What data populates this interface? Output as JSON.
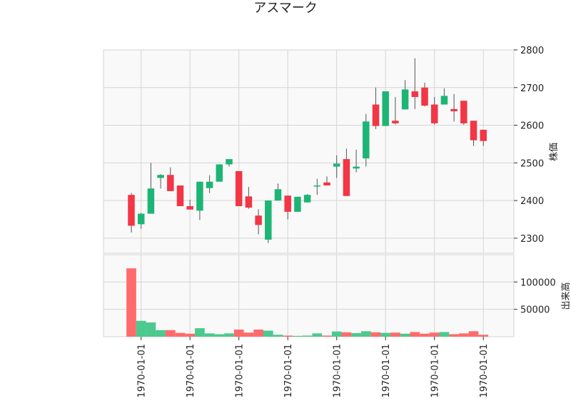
{
  "chart_data": {
    "type": "candlestick",
    "title": "アスマーク",
    "price_axis": {
      "label": "株価",
      "ylim": [
        2260,
        2800
      ],
      "ticks": [
        2300,
        2400,
        2500,
        2600,
        2700,
        2800
      ]
    },
    "volume_axis": {
      "label": "出来高",
      "ylim": [
        0,
        150000
      ],
      "ticks": [
        50000,
        100000
      ]
    },
    "x_tick_labels": [
      "1970-01-01",
      "1970-01-01",
      "1970-01-01",
      "1970-01-01",
      "1970-01-01",
      "1970-01-01",
      "1970-01-01",
      "1970-01-01"
    ],
    "x_tick_positions": [
      1,
      6,
      11,
      16,
      21,
      26,
      31,
      36
    ],
    "colors": {
      "up": "#1db575",
      "down": "#f23645",
      "up_volume": "#4cc98e",
      "down_volume": "#ff6b6b",
      "wick": "#555555",
      "plot_bg": "#f9f9f9",
      "grid": "#d4d4d4"
    },
    "grid": true,
    "candles": [
      {
        "o": 2415,
        "h": 2420,
        "l": 2315,
        "c": 2333,
        "v": 125000
      },
      {
        "o": 2337,
        "h": 2367,
        "l": 2325,
        "c": 2365,
        "v": 29000
      },
      {
        "o": 2365,
        "h": 2500,
        "l": 2365,
        "c": 2432,
        "v": 26000
      },
      {
        "o": 2460,
        "h": 2470,
        "l": 2432,
        "c": 2468,
        "v": 12000
      },
      {
        "o": 2468,
        "h": 2488,
        "l": 2425,
        "c": 2425,
        "v": 12000
      },
      {
        "o": 2440,
        "h": 2440,
        "l": 2385,
        "c": 2385,
        "v": 7000
      },
      {
        "o": 2385,
        "h": 2402,
        "l": 2376,
        "c": 2376,
        "v": 5500
      },
      {
        "o": 2373,
        "h": 2450,
        "l": 2348,
        "c": 2450,
        "v": 15500
      },
      {
        "o": 2433,
        "h": 2467,
        "l": 2420,
        "c": 2450,
        "v": 6000
      },
      {
        "o": 2450,
        "h": 2496,
        "l": 2450,
        "c": 2496,
        "v": 4500
      },
      {
        "o": 2496,
        "h": 2510,
        "l": 2490,
        "c": 2510,
        "v": 6000
      },
      {
        "o": 2478,
        "h": 2478,
        "l": 2385,
        "c": 2385,
        "v": 13000
      },
      {
        "o": 2411,
        "h": 2436,
        "l": 2378,
        "c": 2381,
        "v": 7500
      },
      {
        "o": 2360,
        "h": 2377,
        "l": 2310,
        "c": 2335,
        "v": 13000
      },
      {
        "o": 2296,
        "h": 2400,
        "l": 2287,
        "c": 2400,
        "v": 11000
      },
      {
        "o": 2400,
        "h": 2445,
        "l": 2400,
        "c": 2430,
        "v": 3500
      },
      {
        "o": 2413,
        "h": 2413,
        "l": 2350,
        "c": 2370,
        "v": 2000
      },
      {
        "o": 2370,
        "h": 2410,
        "l": 2370,
        "c": 2410,
        "v": 1500
      },
      {
        "o": 2395,
        "h": 2417,
        "l": 2395,
        "c": 2415,
        "v": 2000
      },
      {
        "o": 2440,
        "h": 2458,
        "l": 2415,
        "c": 2440,
        "v": 6000
      },
      {
        "o": 2448,
        "h": 2464,
        "l": 2440,
        "c": 2440,
        "v": 2000
      },
      {
        "o": 2490,
        "h": 2520,
        "l": 2460,
        "c": 2498,
        "v": 9500
      },
      {
        "o": 2510,
        "h": 2538,
        "l": 2412,
        "c": 2412,
        "v": 8000
      },
      {
        "o": 2485,
        "h": 2535,
        "l": 2475,
        "c": 2490,
        "v": 6500
      },
      {
        "o": 2512,
        "h": 2630,
        "l": 2490,
        "c": 2610,
        "v": 10000
      },
      {
        "o": 2655,
        "h": 2700,
        "l": 2590,
        "c": 2598,
        "v": 8000
      },
      {
        "o": 2598,
        "h": 2690,
        "l": 2598,
        "c": 2690,
        "v": 7000
      },
      {
        "o": 2612,
        "h": 2675,
        "l": 2602,
        "c": 2605,
        "v": 7500
      },
      {
        "o": 2642,
        "h": 2720,
        "l": 2642,
        "c": 2695,
        "v": 5500
      },
      {
        "o": 2690,
        "h": 2778,
        "l": 2643,
        "c": 2675,
        "v": 8500
      },
      {
        "o": 2700,
        "h": 2713,
        "l": 2650,
        "c": 2652,
        "v": 5500
      },
      {
        "o": 2655,
        "h": 2675,
        "l": 2602,
        "c": 2605,
        "v": 7500
      },
      {
        "o": 2655,
        "h": 2698,
        "l": 2655,
        "c": 2678,
        "v": 8500
      },
      {
        "o": 2643,
        "h": 2683,
        "l": 2610,
        "c": 2637,
        "v": 4500
      },
      {
        "o": 2665,
        "h": 2665,
        "l": 2601,
        "c": 2605,
        "v": 6000
      },
      {
        "o": 2612,
        "h": 2612,
        "l": 2545,
        "c": 2560,
        "v": 10000
      },
      {
        "o": 2588,
        "h": 2588,
        "l": 2545,
        "c": 2558,
        "v": 3500
      }
    ]
  }
}
